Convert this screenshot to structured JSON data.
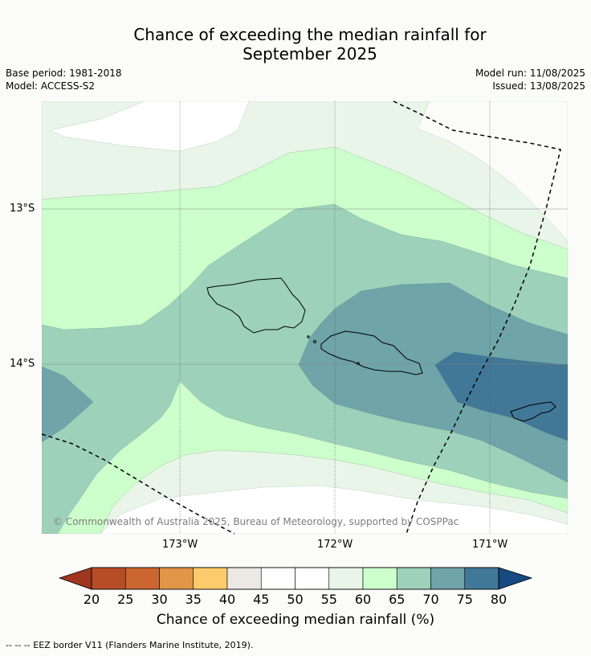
{
  "title_line1": "Chance of exceeding the median rainfall for",
  "title_line2": "September 2025",
  "base_period": "Base period: 1981-2018",
  "model": "Model: ACCESS-S2",
  "model_run": "Model run: 11/08/2025",
  "issued": "Issued: 13/08/2025",
  "credit": "© Commonwealth of Australia 2025, Bureau of Meteorology, supported by COSPPac",
  "lat_ticks": [
    "13°S",
    "14°S"
  ],
  "lon_ticks": [
    "173°W",
    "172°W",
    "171°W"
  ],
  "colorbar": {
    "title": "Chance of exceeding median rainfall (%)",
    "labels": [
      "20",
      "25",
      "30",
      "35",
      "40",
      "45",
      "50",
      "55",
      "60",
      "65",
      "70",
      "75",
      "80"
    ],
    "colors": [
      "#a0361d",
      "#b74d27",
      "#cc6631",
      "#e09547",
      "#fdcb6b",
      "#ece9e4",
      "#ffffff",
      "#ffffff",
      "#e8f5e8",
      "#ccffcc",
      "#9dd1ba",
      "#6fa4a8",
      "#417897",
      "#164a80"
    ]
  },
  "footnote": "--  --  -- EEZ border V11 (Flanders Marine Institute, 2019)."
}
